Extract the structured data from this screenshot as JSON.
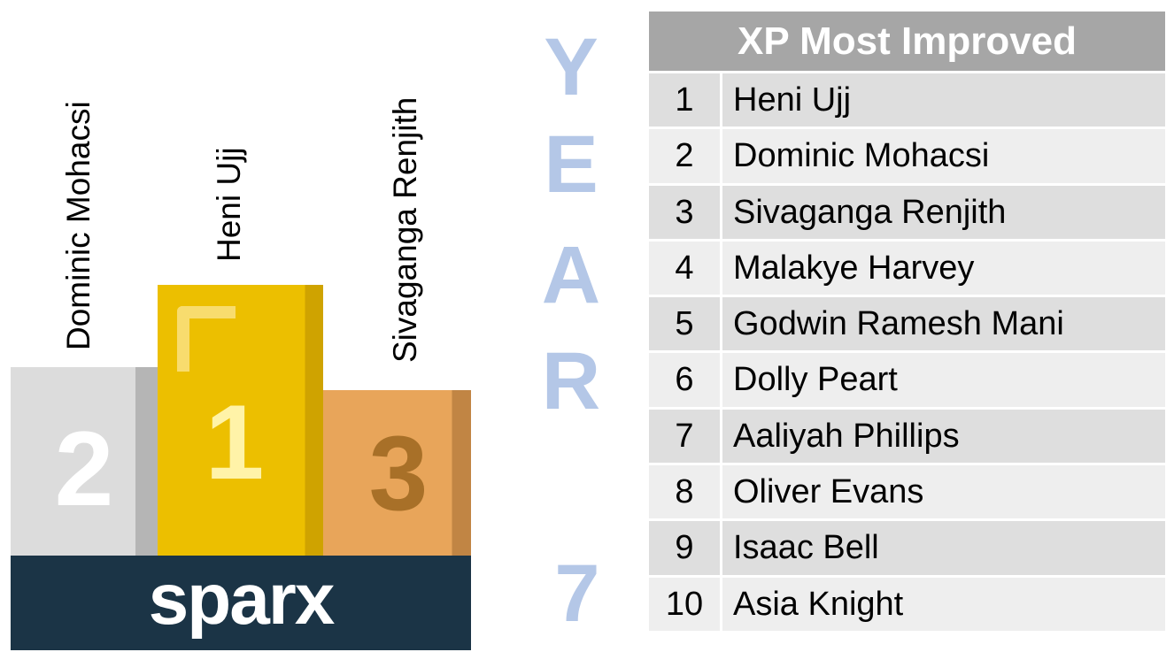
{
  "podium": {
    "second": "Dominic Mohacsi",
    "first": "Heni Ujj",
    "third": "Sivaganga Renjith",
    "places": [
      "2",
      "1",
      "3"
    ],
    "logo": "sparx"
  },
  "year": {
    "letters": [
      "Y",
      "E",
      "A",
      "R"
    ],
    "number": "7"
  },
  "table": {
    "title": "XP Most Improved",
    "rows": [
      [
        "1",
        "Heni Ujj"
      ],
      [
        "2",
        "Dominic Mohacsi"
      ],
      [
        "3",
        "Sivaganga Renjith"
      ],
      [
        "4",
        "Malakye Harvey"
      ],
      [
        "5",
        "Godwin Ramesh Mani"
      ],
      [
        "6",
        "Dolly Peart"
      ],
      [
        "7",
        "Aaliyah Phillips"
      ],
      [
        "8",
        "Oliver Evans"
      ],
      [
        "9",
        "Isaac Bell"
      ],
      [
        "10",
        "Asia Knight"
      ]
    ]
  }
}
